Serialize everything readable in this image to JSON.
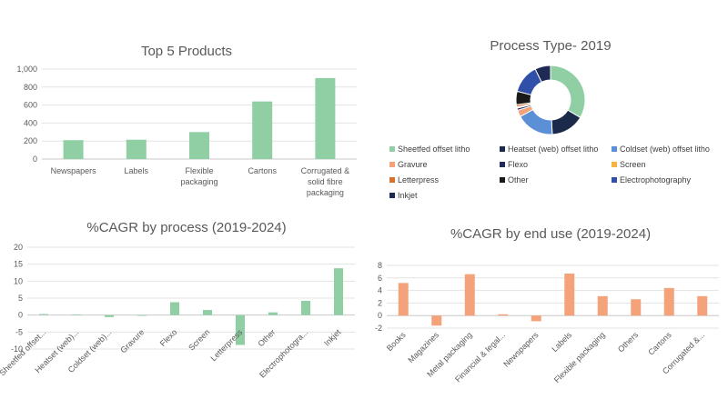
{
  "chart_data": [
    {
      "id": "top5",
      "type": "bar",
      "title": "Top 5 Products",
      "categories": [
        "Newspapers",
        "Labels",
        "Flexible packaging",
        "Cartons",
        "Corrugated & solid fibre packaging"
      ],
      "category_lines": [
        [
          "Newspapers"
        ],
        [
          "Labels"
        ],
        [
          "Flexible",
          "packaging"
        ],
        [
          "Cartons"
        ],
        [
          "Corrugated &",
          "solid fibre",
          "packaging"
        ]
      ],
      "values": [
        210,
        215,
        300,
        640,
        900
      ],
      "ylim": [
        0,
        1000
      ],
      "yticks": [
        0,
        200,
        400,
        600,
        800,
        1000
      ],
      "ytick_labels": [
        "0",
        "200",
        "400",
        "600",
        "800",
        "1,000"
      ],
      "color": "#8fcfa3",
      "grid": true
    },
    {
      "id": "process2019",
      "type": "pie",
      "donut": true,
      "title": "Process Type- 2019",
      "labels": [
        "Sheetfed offset litho",
        "Heatset (web) offset litho",
        "Coldset (web) offset litho",
        "Gravure",
        "Flexo",
        "Screen",
        "Letterpress",
        "Other",
        "Electrophotography",
        "Inkjet"
      ],
      "values": [
        32,
        15,
        17,
        3,
        1,
        0.5,
        1,
        6,
        13,
        7
      ],
      "colors": [
        "#8fcfa3",
        "#1b2a4a",
        "#5b8fd6",
        "#f4a27a",
        "#222a5c",
        "#f5b342",
        "#d9702a",
        "#1a1a1a",
        "#2f4fa8",
        "#1e2b55"
      ],
      "legend": "bottom"
    },
    {
      "id": "cagr_process",
      "type": "bar",
      "title": "%CAGR by process (2019-2024)",
      "categories": [
        "Sheetfed offset...",
        "Heatset (web)...",
        "Coldset (web)...",
        "Gravure",
        "Flexo",
        "Screen",
        "Letterpress",
        "Other",
        "Electrophotogra...",
        "Inkjet"
      ],
      "values": [
        0.3,
        0.2,
        -0.6,
        0,
        3.8,
        1.5,
        -8.8,
        0.8,
        4.2,
        13.8
      ],
      "ylim": [
        -10,
        20
      ],
      "yticks": [
        -10,
        -5,
        0,
        5,
        10,
        15,
        20
      ],
      "ytick_labels": [
        "-10",
        "-5",
        "0",
        "5",
        "10",
        "15",
        "20"
      ],
      "color": "#8fcfa3",
      "grid": true
    },
    {
      "id": "cagr_enduse",
      "type": "bar",
      "title": "%CAGR by end use (2019-2024)",
      "categories": [
        "Books",
        "Magazines",
        "Metal packaging",
        "Financial & legal...",
        "Newspapers",
        "Labels",
        "Flexible packaging",
        "Others",
        "Cartons",
        "Corrugated &..."
      ],
      "values": [
        5.2,
        -1.6,
        6.6,
        0.2,
        -0.9,
        6.7,
        3.1,
        2.6,
        4.4,
        3.1
      ],
      "ylim": [
        -2,
        8
      ],
      "yticks": [
        -2,
        0,
        2,
        4,
        6,
        8
      ],
      "ytick_labels": [
        "-2",
        "0",
        "2",
        "4",
        "6",
        "8"
      ],
      "color": "#f4a27a",
      "grid": true
    }
  ]
}
